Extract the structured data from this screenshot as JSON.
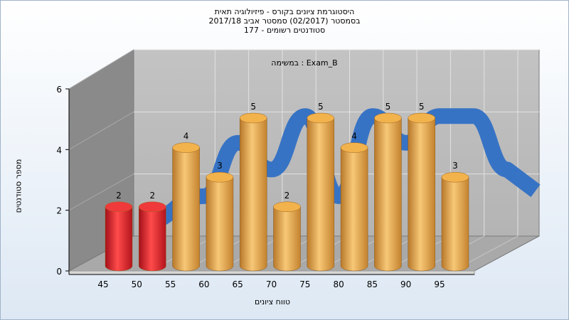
{
  "chart_data": {
    "type": "bar",
    "title_lines": [
      "היסטוגרמת ציונים בקורס - פיזיולוגיה תאית",
      "בסמסטר  (02/2017)  סמסטר אביב 2017/18",
      "סטודנטים רשומים - 177"
    ],
    "annotation": "במשימה : Exam_B",
    "xlabel": "טווח ציונים",
    "ylabel": "מספר סטודנטים",
    "x_ticks": [
      "45",
      "50",
      "55",
      "60",
      "65",
      "70",
      "75",
      "80",
      "85",
      "90",
      "95"
    ],
    "y_ticks": [
      0,
      2,
      4,
      6
    ],
    "ylim": [
      0,
      6
    ],
    "bins": [
      "45-50",
      "50-55",
      "55-60",
      "60-65",
      "65-70",
      "70-75",
      "75-80",
      "80-85",
      "85-90",
      "90-95",
      "95-100"
    ],
    "values": [
      2,
      2,
      4,
      3,
      5,
      2,
      5,
      4,
      5,
      5,
      3
    ],
    "bar_colors": [
      "#e8232a",
      "#e8232a",
      "#e8a33c",
      "#e8a33c",
      "#e8a33c",
      "#e8a33c",
      "#e8a33c",
      "#e8a33c",
      "#e8a33c",
      "#e8a33c",
      "#e8a33c"
    ],
    "ribbon_color": "#2f6fc4",
    "grid": true
  }
}
